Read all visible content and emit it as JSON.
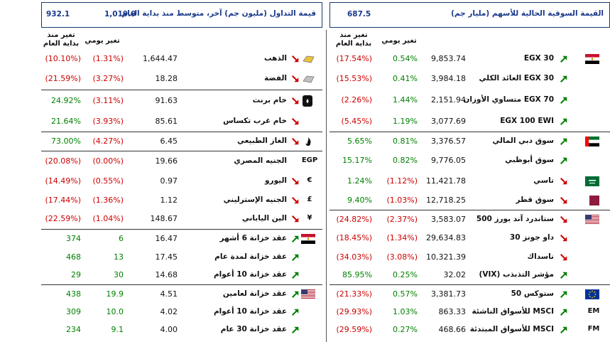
{
  "colors": {
    "up": "#008000",
    "down": "#cc0000",
    "header": "#1a3a8a"
  },
  "left": {
    "header": {
      "title": "قيمة التداول (مليون جم) آخر، متوسط منذ بداية العام",
      "v1": "1,019.9",
      "v2": "932.1"
    },
    "col_daily": "تغير يومي",
    "col_ytd": "تغير منذ بداية العام",
    "rows": [
      {
        "name": "الذهب",
        "value": "1,644.47",
        "daily": "(1.31%)",
        "ytd": "(10.10%)",
        "dir": "down",
        "icon": "gold-bar-icon",
        "dc": "red",
        "yc": "red"
      },
      {
        "name": "الفضة",
        "value": "18.28",
        "daily": "(3.27%)",
        "ytd": "(21.59%)",
        "dir": "down",
        "icon": "silver-bar-icon",
        "dc": "red",
        "yc": "red"
      },
      {
        "name": "خام برنت",
        "value": "91.63",
        "daily": "(3.11%)",
        "ytd": "24.92%",
        "dir": "down",
        "icon": "oil-barrel-icon",
        "dc": "red",
        "yc": "green"
      },
      {
        "name": "خام غرب تكساس",
        "value": "85.61",
        "daily": "(3.93%)",
        "ytd": "21.64%",
        "dir": "down",
        "icon": "",
        "dc": "red",
        "yc": "green"
      },
      {
        "name": "الغاز الطبيعي",
        "value": "6.45",
        "daily": "(4.27%)",
        "ytd": "73.00%",
        "dir": "down",
        "icon": "flame-icon",
        "dc": "red",
        "yc": "green"
      },
      {
        "name": "الجنيه المصري",
        "value": "19.66",
        "daily": "(0.00%)",
        "ytd": "(20.08%)",
        "dir": "",
        "icon": "",
        "label": "EGP",
        "dc": "red",
        "yc": "red"
      },
      {
        "name": "اليورو",
        "value": "0.97",
        "daily": "(0.55%)",
        "ytd": "(14.49%)",
        "dir": "down",
        "icon": "",
        "label": "€",
        "dc": "red",
        "yc": "red"
      },
      {
        "name": "الجنيه الإسترليني",
        "value": "1.12",
        "daily": "(1.36%)",
        "ytd": "(17.44%)",
        "dir": "down",
        "icon": "",
        "label": "£",
        "dc": "red",
        "yc": "red"
      },
      {
        "name": "الين الياباني",
        "value": "148.67",
        "daily": "(1.04%)",
        "ytd": "(22.59%)",
        "dir": "down",
        "icon": "",
        "label": "¥",
        "dc": "red",
        "yc": "red"
      },
      {
        "name": "عقد خزانة 6 أشهر",
        "value": "16.47",
        "daily": "6",
        "ytd": "374",
        "dir": "up",
        "icon": "egypt-flag-icon",
        "dc": "green",
        "yc": "green"
      },
      {
        "name": "عقد خزانة لمدة عام",
        "value": "17.45",
        "daily": "13",
        "ytd": "468",
        "dir": "up",
        "icon": "",
        "dc": "green",
        "yc": "green"
      },
      {
        "name": "عقد خزانة 10 أعوام",
        "value": "14.68",
        "daily": "30",
        "ytd": "29",
        "dir": "up",
        "icon": "",
        "dc": "green",
        "yc": "green"
      },
      {
        "name": "عقد خزانة لعامين",
        "value": "4.51",
        "daily": "19.9",
        "ytd": "438",
        "dir": "up",
        "icon": "us-flag-icon",
        "dc": "green",
        "yc": "green"
      },
      {
        "name": "عقد خزانة 10 أعوام",
        "value": "4.02",
        "daily": "10.0",
        "ytd": "309",
        "dir": "up",
        "icon": "",
        "dc": "green",
        "yc": "green"
      },
      {
        "name": "عقد خزانة 30 عام",
        "value": "4.00",
        "daily": "9.1",
        "ytd": "234",
        "dir": "up",
        "icon": "",
        "dc": "green",
        "yc": "green"
      }
    ]
  },
  "right": {
    "header": {
      "title": "القيمة السوقية الحالية للأسهم (مليار جم)",
      "v1": "687.5"
    },
    "col_daily": "تغير يومي",
    "col_ytd": "تغير منذ بداية العام",
    "rows": [
      {
        "name": "EGX 30",
        "value": "9,853.74",
        "daily": "0.54%",
        "ytd": "(17.54%)",
        "dir": "up",
        "icon": "egypt-flag-icon",
        "dc": "green",
        "yc": "red"
      },
      {
        "name": "EGX 30 العائد الكلي",
        "value": "3,984.18",
        "daily": "0.41%",
        "ytd": "(15.53%)",
        "dir": "up",
        "icon": "",
        "dc": "green",
        "yc": "red"
      },
      {
        "name": "EGX 70 متساوي الأوزان",
        "value": "2,151.94",
        "daily": "1.44%",
        "ytd": "(2.26%)",
        "dir": "up",
        "icon": "",
        "dc": "green",
        "yc": "red"
      },
      {
        "name": "EGX 100 EWI",
        "value": "3,077.69",
        "daily": "1.19%",
        "ytd": "(5.45%)",
        "dir": "up",
        "icon": "",
        "dc": "green",
        "yc": "red"
      },
      {
        "name": "سوق دبي المالي",
        "value": "3,376.57",
        "daily": "0.81%",
        "ytd": "5.65%",
        "dir": "up",
        "icon": "uae-flag-icon",
        "dc": "green",
        "yc": "green"
      },
      {
        "name": "سوق أبوظبي",
        "value": "9,776.05",
        "daily": "0.82%",
        "ytd": "15.17%",
        "dir": "up",
        "icon": "",
        "dc": "green",
        "yc": "green"
      },
      {
        "name": "تاسي",
        "value": "11,421.78",
        "daily": "(1.12%)",
        "ytd": "1.24%",
        "dir": "down",
        "icon": "saudi-flag-icon",
        "dc": "red",
        "yc": "green"
      },
      {
        "name": "سوق قطر",
        "value": "12,718.25",
        "daily": "(1.03%)",
        "ytd": "9.40%",
        "dir": "down",
        "icon": "qatar-flag-icon",
        "dc": "red",
        "yc": "green"
      },
      {
        "name": "ستاندرد آند بورز 500",
        "value": "3,583.07",
        "daily": "(2.37%)",
        "ytd": "(24.82%)",
        "dir": "down",
        "icon": "us-flag-icon",
        "dc": "red",
        "yc": "red"
      },
      {
        "name": "داو جونز 30",
        "value": "29,634.83",
        "daily": "(1.34%)",
        "ytd": "(18.45%)",
        "dir": "down",
        "icon": "",
        "dc": "red",
        "yc": "red"
      },
      {
        "name": "ناسداك",
        "value": "10,321.39",
        "daily": "(3.08%)",
        "ytd": "(34.03%)",
        "dir": "down",
        "icon": "",
        "dc": "red",
        "yc": "red"
      },
      {
        "name": "مؤشر التذبذب (VIX)",
        "value": "32.02",
        "daily": "0.25%",
        "ytd": "85.95%",
        "dir": "up",
        "icon": "",
        "dc": "green",
        "yc": "green"
      },
      {
        "name": "ستوكس 50",
        "value": "3,381.73",
        "daily": "0.57%",
        "ytd": "(21.33%)",
        "dir": "up",
        "icon": "eu-flag-icon",
        "dc": "green",
        "yc": "red"
      },
      {
        "name": "MSCI للأسواق الناشئة",
        "value": "863.33",
        "daily": "1.03%",
        "ytd": "(29.93%)",
        "dir": "up",
        "icon": "",
        "label": "EM",
        "dc": "green",
        "yc": "red"
      },
      {
        "name": "MSCI للأسواق المبتدئة",
        "value": "468.66",
        "daily": "0.27%",
        "ytd": "(29.59%)",
        "dir": "up",
        "icon": "",
        "label": "FM",
        "dc": "green",
        "yc": "red"
      }
    ]
  }
}
